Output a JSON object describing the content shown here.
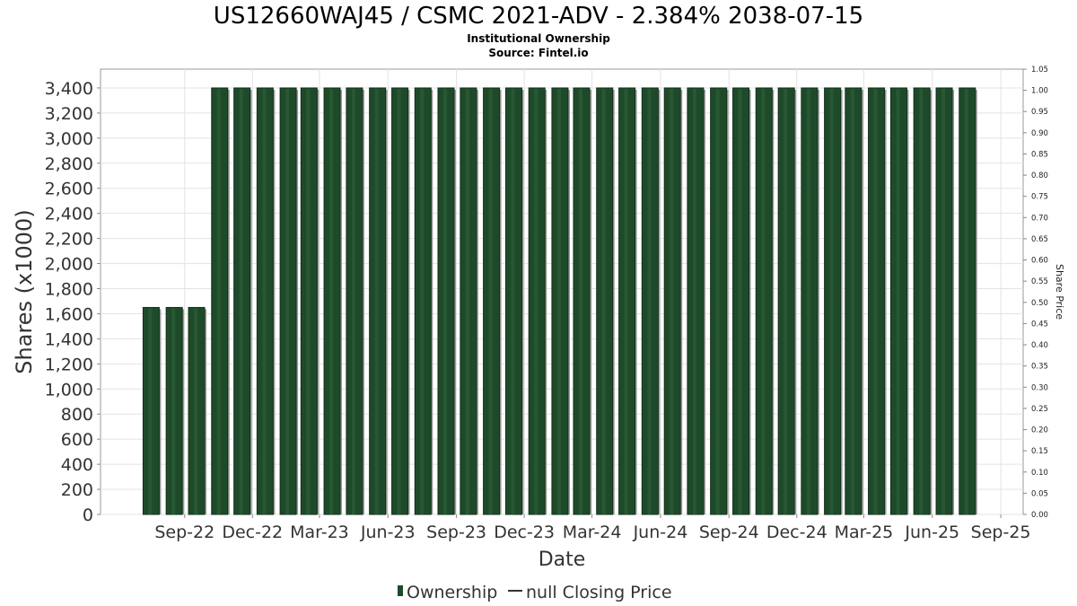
{
  "chart_data": {
    "type": "bar",
    "title": "US12660WAJ45 / CSMC 2021-ADV - 2.384% 2038-07-15",
    "subtitle_1": "Institutional Ownership",
    "subtitle_2": "Source: Fintel.io",
    "xlabel": "Date",
    "ylabel": "Shares (x1000)",
    "y2label": "Share Price",
    "ylim": [
      0,
      3550
    ],
    "yticks": [
      0,
      200,
      400,
      600,
      800,
      1000,
      1200,
      1400,
      1600,
      1800,
      2000,
      2200,
      2400,
      2600,
      2800,
      3000,
      3200,
      3400
    ],
    "ytick_labels": [
      "0",
      "200",
      "400",
      "600",
      "800",
      "1,000",
      "1,200",
      "1,400",
      "1,600",
      "1,800",
      "2,000",
      "2,200",
      "2,400",
      "2,600",
      "2,800",
      "3,000",
      "3,200",
      "3,400"
    ],
    "y2lim": [
      0,
      1.05
    ],
    "y2ticks": [
      0.0,
      0.05,
      0.1,
      0.15,
      0.2,
      0.25,
      0.3,
      0.35,
      0.4,
      0.45,
      0.5,
      0.55,
      0.6,
      0.65,
      0.7,
      0.75,
      0.8,
      0.85,
      0.9,
      0.95,
      1.0,
      1.05
    ],
    "y2tick_labels": [
      "0.00",
      "0.05",
      "0.10",
      "0.15",
      "0.20",
      "0.25",
      "0.30",
      "0.35",
      "0.40",
      "0.45",
      "0.50",
      "0.55",
      "0.60",
      "0.65",
      "0.70",
      "0.75",
      "0.80",
      "0.85",
      "0.90",
      "0.95",
      "1.00",
      "1.05"
    ],
    "xtick_labels": [
      "Sep-22",
      "Dec-22",
      "Mar-23",
      "Jun-23",
      "Sep-23",
      "Dec-23",
      "Mar-24",
      "Jun-24",
      "Sep-24",
      "Dec-24",
      "Mar-25",
      "Jun-25",
      "Sep-25"
    ],
    "x": [
      "2022-08-01",
      "2022-09-01",
      "2022-10-01",
      "2022-11-01",
      "2022-12-01",
      "2023-01-01",
      "2023-02-01",
      "2023-03-01",
      "2023-04-01",
      "2023-05-01",
      "2023-06-01",
      "2023-07-01",
      "2023-08-01",
      "2023-09-01",
      "2023-10-01",
      "2023-11-01",
      "2023-12-01",
      "2024-01-01",
      "2024-02-01",
      "2024-03-01",
      "2024-04-01",
      "2024-05-01",
      "2024-06-01",
      "2024-07-01",
      "2024-08-01",
      "2024-09-01",
      "2024-10-01",
      "2024-11-01",
      "2024-12-01",
      "2025-01-01",
      "2025-02-01",
      "2025-03-01",
      "2025-04-01",
      "2025-05-01",
      "2025-06-01",
      "2025-07-01",
      "2025-08-01"
    ],
    "series": [
      {
        "name": "Ownership",
        "color": "#1e4a2a",
        "values": [
          1650,
          1650,
          1650,
          3400,
          3400,
          3400,
          3400,
          3400,
          3400,
          3400,
          3400,
          3400,
          3400,
          3400,
          3400,
          3400,
          3400,
          3400,
          3400,
          3400,
          3400,
          3400,
          3400,
          3400,
          3400,
          3400,
          3400,
          3400,
          3400,
          3400,
          3400,
          3400,
          3400,
          3400,
          3400,
          3400,
          3400
        ]
      }
    ],
    "legend": [
      {
        "name": "Ownership",
        "marker": "bar",
        "color": "#1e4a2a"
      },
      {
        "name": "null Closing Price",
        "marker": "line",
        "color": "#333333"
      }
    ],
    "legend_position": "bottom",
    "grid": true
  }
}
